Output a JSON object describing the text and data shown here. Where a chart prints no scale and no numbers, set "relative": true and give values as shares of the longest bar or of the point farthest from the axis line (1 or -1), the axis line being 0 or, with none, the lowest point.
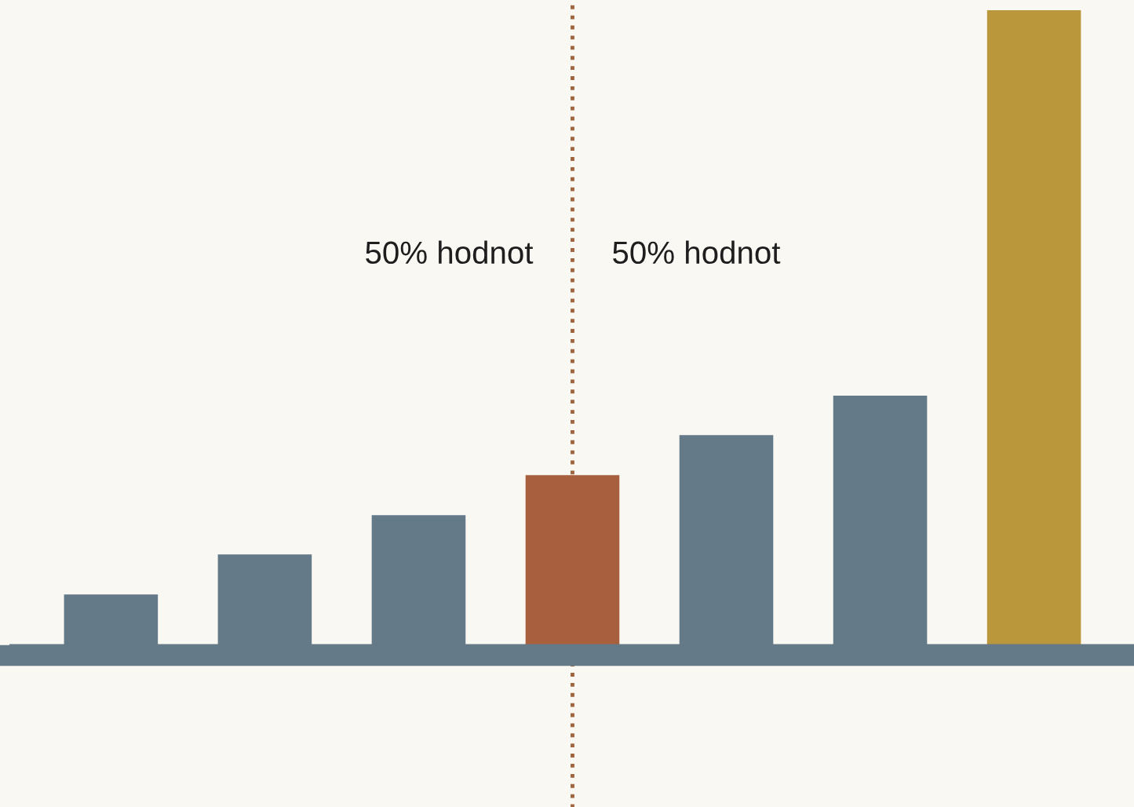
{
  "chart_data": {
    "type": "bar",
    "relative": true,
    "categories": [
      null,
      null,
      null,
      null,
      null,
      null,
      null
    ],
    "values": [
      0.08,
      0.143,
      0.205,
      0.268,
      0.331,
      0.393,
      1
    ],
    "colors": [
      "#647a88",
      "#647a88",
      "#647a88",
      "#a85f3e",
      "#647a88",
      "#647a88",
      "#bb973c"
    ],
    "annotations": [
      "50% hodnot",
      "50% hodnot"
    ],
    "grid": false,
    "legend": false
  }
}
